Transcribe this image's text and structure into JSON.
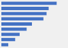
{
  "chart_data": {
    "type": "bar",
    "orientation": "horizontal",
    "categories": [
      null,
      null,
      null,
      null,
      null,
      null,
      null,
      null,
      null
    ],
    "values": [
      3026,
      2588,
      2473,
      2302,
      1673,
      1383,
      1000,
      756,
      378
    ],
    "color": "#4472c4",
    "xlim": [
      0,
      3200
    ],
    "tick_labels": false,
    "grid": false
  }
}
